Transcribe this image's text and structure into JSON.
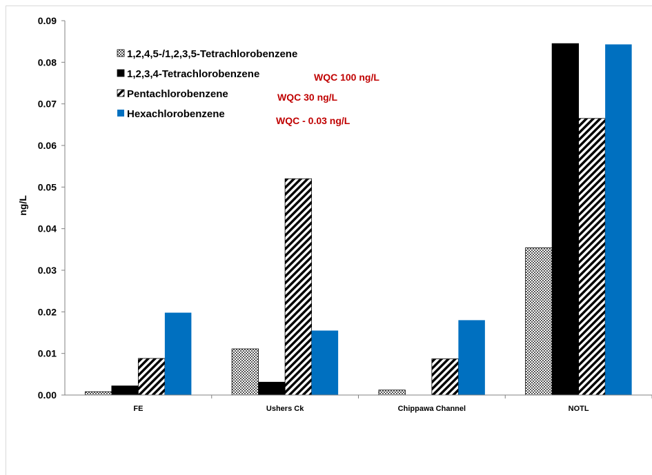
{
  "chart_data": {
    "type": "bar",
    "title": "",
    "xlabel": "",
    "ylabel": "ng/L",
    "ylim": [
      0,
      0.09
    ],
    "yticks": [
      "0.00",
      "0.01",
      "0.02",
      "0.03",
      "0.04",
      "0.05",
      "0.06",
      "0.07",
      "0.08",
      "0.09"
    ],
    "categories": [
      "FE",
      "Ushers Ck",
      "Chippawa Channel",
      "NOTL"
    ],
    "grid": false,
    "legend_position": "top-left",
    "series": [
      {
        "name": "1,2,4,5-/1,2,3,5-Tetrachlorobenzene",
        "pattern": "checker",
        "values": [
          0.0008,
          0.0111,
          0.0012,
          0.0354
        ]
      },
      {
        "name": "1,2,3,4-Tetrachlorobenzene",
        "color": "#000000",
        "values": [
          0.0022,
          0.0031,
          0,
          0.0845
        ]
      },
      {
        "name": "Pentachlorobenzene",
        "pattern": "diagonal",
        "values": [
          0.0088,
          0.052,
          0.0087,
          0.0665
        ]
      },
      {
        "name": "Hexachlorobenzene",
        "color": "#0070C0",
        "values": [
          0.0198,
          0.0155,
          0.018,
          0.0843
        ]
      }
    ],
    "annotations": [
      "WQC 100 ng/L",
      "WQC 30 ng/L",
      "WQC - 0.03 ng/L"
    ],
    "annotation_color": "#C00000"
  }
}
